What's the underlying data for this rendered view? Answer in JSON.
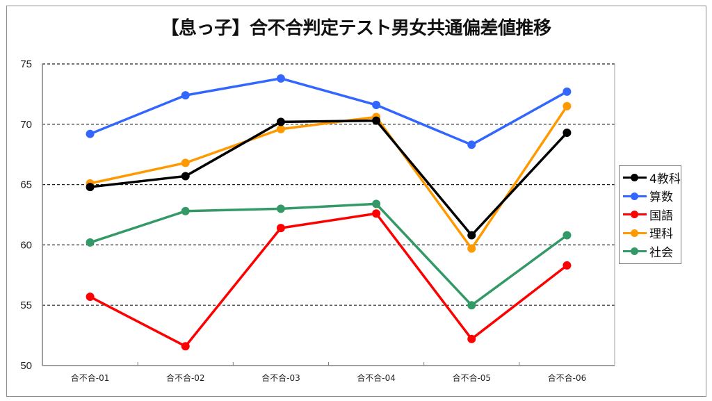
{
  "chart_data": {
    "type": "line",
    "title": "【息っ子】合不合判定テスト男女共通偏差値推移",
    "xlabel": "",
    "ylabel": "",
    "categories": [
      "合不合-01",
      "合不合-02",
      "合不合-03",
      "合不合-04",
      "合不合-05",
      "合不合-06"
    ],
    "ylim": [
      50,
      75
    ],
    "yticks": [
      50,
      55,
      60,
      65,
      70,
      75
    ],
    "grid": "horizontal dashed",
    "legend_position": "right",
    "series": [
      {
        "name": "4教科",
        "color": "#000000",
        "values": [
          64.8,
          65.7,
          70.2,
          70.3,
          60.8,
          69.3
        ]
      },
      {
        "name": "算数",
        "color": "#3366ff",
        "values": [
          69.2,
          72.4,
          73.8,
          71.6,
          68.3,
          72.7
        ]
      },
      {
        "name": "国語",
        "color": "#ff0000",
        "values": [
          55.7,
          51.6,
          61.4,
          62.6,
          52.2,
          58.3
        ]
      },
      {
        "name": "理科",
        "color": "#ff9900",
        "values": [
          65.1,
          66.8,
          69.6,
          70.6,
          59.7,
          71.5
        ]
      },
      {
        "name": "社会",
        "color": "#339966",
        "values": [
          60.2,
          62.8,
          63.0,
          63.4,
          55.0,
          60.8
        ]
      }
    ]
  }
}
